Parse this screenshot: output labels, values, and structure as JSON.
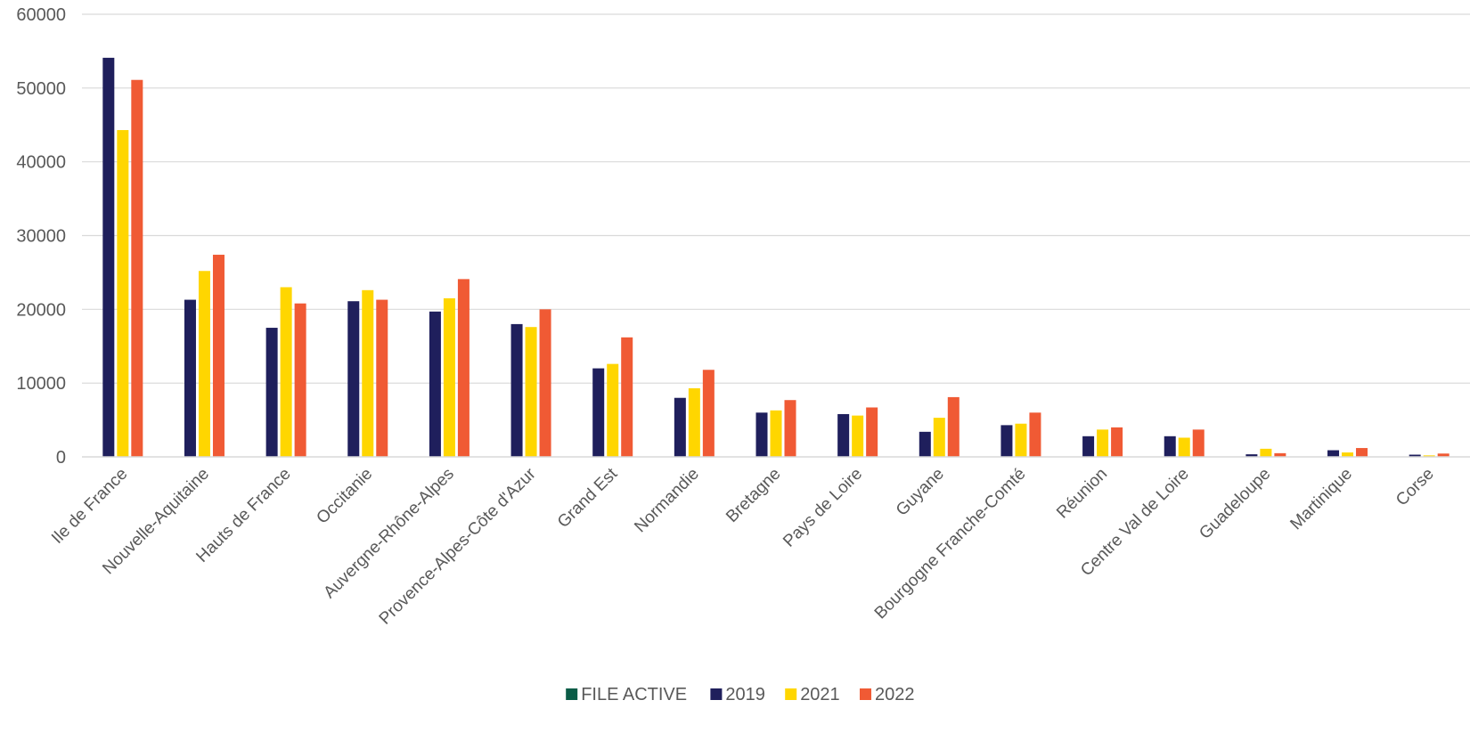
{
  "chart_data": {
    "type": "bar",
    "title": "",
    "xlabel": "",
    "ylabel": "",
    "ylim": [
      0,
      60000
    ],
    "yticks": [
      0,
      10000,
      20000,
      30000,
      40000,
      50000,
      60000
    ],
    "grid": true,
    "legend_position": "bottom",
    "categories": [
      "Ile de France",
      "Nouvelle-Aquitaine",
      "Hauts de France",
      "Occitanie",
      "Auvergne-Rhône-Alpes",
      "Provence-Alpes-Côte d'Azur",
      "Grand Est",
      "Normandie",
      "Bretagne",
      "Pays de Loire",
      "Guyane",
      "Bourgogne Franche-Comté",
      "Réunion",
      "Centre Val de Loire",
      "Guadeloupe",
      "Martinique",
      "Corse"
    ],
    "series": [
      {
        "name": "FILE ACTIVE",
        "color": "#0b5c47",
        "values": [
          0,
          0,
          0,
          0,
          0,
          0,
          0,
          0,
          0,
          0,
          0,
          0,
          0,
          0,
          0,
          0,
          0
        ]
      },
      {
        "name": "2019",
        "color": "#1f1f5c",
        "values": [
          54100,
          21300,
          17500,
          21100,
          19700,
          18000,
          12000,
          8000,
          6000,
          5800,
          3400,
          4300,
          2800,
          2800,
          350,
          900,
          300
        ]
      },
      {
        "name": "2021",
        "color": "#ffd600",
        "values": [
          44300,
          25200,
          23000,
          22600,
          21500,
          17600,
          12600,
          9300,
          6300,
          5600,
          5300,
          4500,
          3700,
          2600,
          1100,
          600,
          200
        ]
      },
      {
        "name": "2022",
        "color": "#f05a34",
        "values": [
          51100,
          27400,
          20800,
          21300,
          24100,
          20000,
          16200,
          11800,
          7700,
          6700,
          8100,
          6000,
          4000,
          3700,
          500,
          1200,
          450
        ]
      }
    ]
  }
}
